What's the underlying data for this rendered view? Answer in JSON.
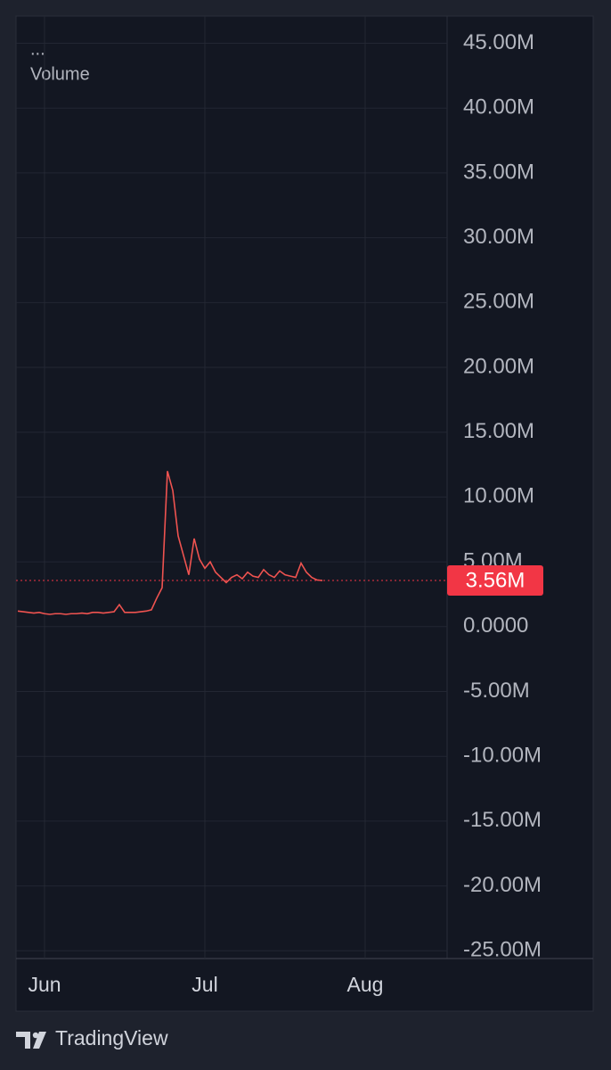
{
  "chart_data": {
    "type": "line",
    "legend_dots": "...",
    "indicator": "Volume",
    "brand": "TradingView",
    "categories": [
      null,
      null,
      null,
      null,
      null,
      "Jun",
      null,
      null,
      null,
      null,
      null,
      null,
      null,
      null,
      null,
      null,
      null,
      null,
      null,
      null,
      null,
      null,
      null,
      null,
      null,
      null,
      null,
      null,
      null,
      null,
      null,
      null,
      null,
      null,
      null,
      "Jul",
      null,
      null,
      null,
      null,
      null,
      null,
      null,
      null,
      null,
      null,
      null,
      null,
      null,
      null,
      null,
      null,
      null,
      null,
      null,
      null,
      null,
      null,
      null,
      null,
      null,
      null,
      null,
      null,
      null,
      "Aug",
      null,
      null,
      null,
      null,
      null,
      null,
      null,
      null,
      null,
      null,
      null,
      null,
      null,
      null,
      null
    ],
    "values": [
      1200000,
      1150000,
      1100000,
      1050000,
      1100000,
      1000000,
      950000,
      1000000,
      1000000,
      950000,
      1000000,
      1000000,
      1050000,
      1000000,
      1100000,
      1100000,
      1050000,
      1100000,
      1150000,
      1700000,
      1100000,
      1100000,
      1100000,
      1150000,
      1200000,
      1300000,
      2200000,
      3000000,
      12000000,
      10500000,
      7000000,
      5500000,
      4000000,
      6800000,
      5200000,
      4500000,
      5000000,
      4200000,
      3800000,
      3400000,
      3800000,
      4000000,
      3700000,
      4200000,
      3900000,
      3800000,
      4400000,
      4000000,
      3800000,
      4300000,
      4000000,
      3900000,
      3800000,
      4900000,
      4200000,
      3800000,
      3600000,
      3560000,
      null,
      null,
      null,
      null,
      null,
      null,
      null,
      null,
      null,
      null,
      null,
      null,
      null,
      null,
      null,
      null,
      null,
      null,
      null,
      null,
      null,
      null,
      null
    ],
    "color": "#ef5350",
    "ylim": [
      -25600000,
      47100000
    ],
    "yticks": [
      {
        "value": -25000000,
        "label": "-25.00M"
      },
      {
        "value": -20000000,
        "label": "-20.00M"
      },
      {
        "value": -15000000,
        "label": "-15.00M"
      },
      {
        "value": -10000000,
        "label": "-10.00M"
      },
      {
        "value": -5000000,
        "label": "-5.00M"
      },
      {
        "value": 0,
        "label": "0.0000"
      },
      {
        "value": 5000000,
        "label": "5.00M"
      },
      {
        "value": 10000000,
        "label": "10.00M"
      },
      {
        "value": 15000000,
        "label": "15.00M"
      },
      {
        "value": 20000000,
        "label": "20.00M"
      },
      {
        "value": 25000000,
        "label": "25.00M"
      },
      {
        "value": 30000000,
        "label": "30.00M"
      },
      {
        "value": 35000000,
        "label": "35.00M"
      },
      {
        "value": 40000000,
        "label": "40.00M"
      },
      {
        "value": 45000000,
        "label": "45.00M"
      }
    ],
    "price_line": {
      "value": 3560000,
      "label": "3.56M",
      "color": "#f23645"
    },
    "grid": true
  }
}
